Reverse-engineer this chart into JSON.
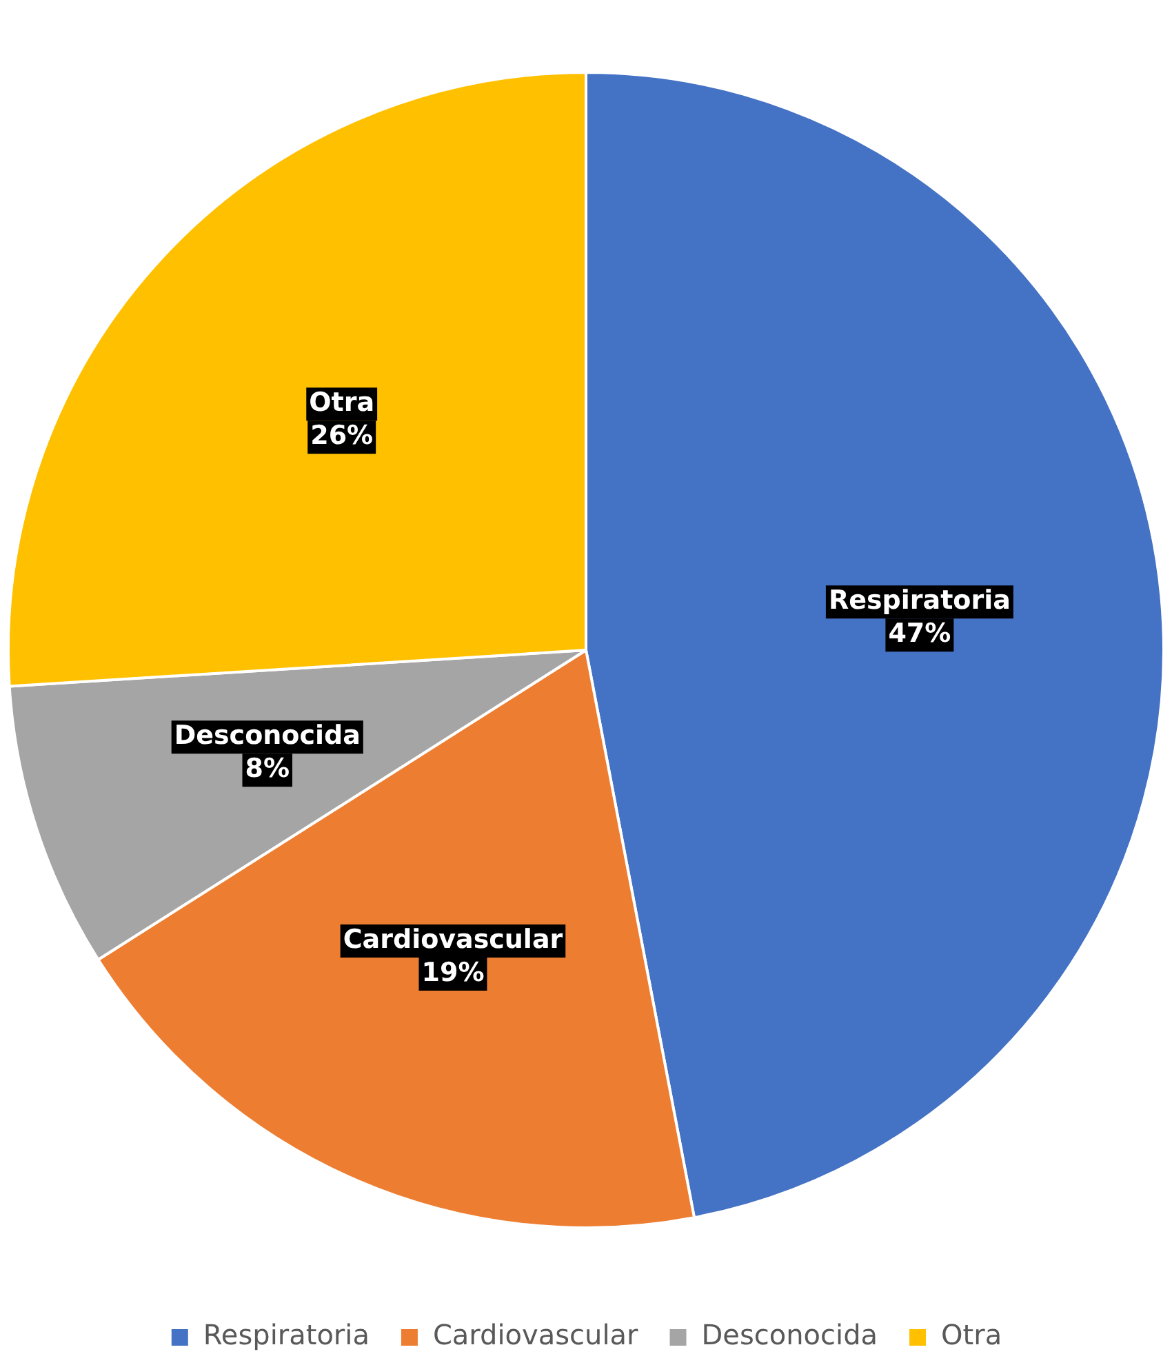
{
  "chart_data": {
    "type": "pie",
    "categories": [
      "Respiratoria",
      "Cardiovascular",
      "Desconocida",
      "Otra"
    ],
    "values": [
      47,
      19,
      8,
      26
    ],
    "colors": [
      "#4472c4",
      "#ed7d31",
      "#a5a5a5",
      "#ffc000"
    ],
    "value_labels": [
      "47%",
      "19%",
      "8%",
      "26%"
    ],
    "legend": "bottom"
  }
}
